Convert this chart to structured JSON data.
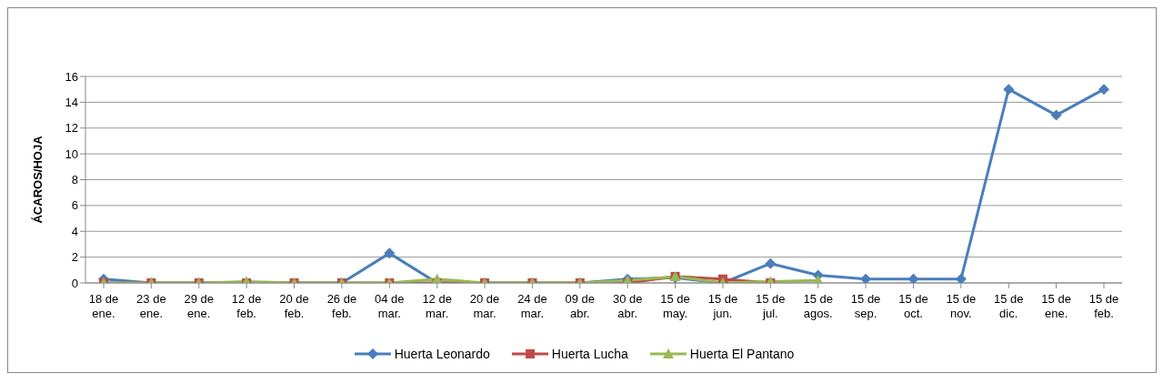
{
  "chart_data": {
    "type": "line",
    "ylabel": "ÁCAROS/HOJA",
    "categories": [
      "18 de ene.",
      "23 de ene.",
      "29 de ene.",
      "12 de feb.",
      "20 de feb.",
      "26 de feb.",
      "04 de mar.",
      "12 de mar.",
      "20 de mar.",
      "24 de mar.",
      "09 de abr.",
      "30 de abr.",
      "15 de may.",
      "15 de jun.",
      "15 de jul.",
      "15 de agos.",
      "15 de sep.",
      "15 de oct.",
      "15 de nov.",
      "15 de dic.",
      "15 de ene.",
      "15 de feb."
    ],
    "series": [
      {
        "name": "Huerta Leonardo",
        "color": "#4a7ebb",
        "marker": "diamond",
        "values": [
          0.3,
          0,
          0,
          0,
          0,
          0,
          2.3,
          0,
          0,
          0,
          0,
          0.3,
          0.4,
          0,
          1.5,
          0.6,
          0.3,
          0.3,
          0.3,
          15,
          13,
          15
        ]
      },
      {
        "name": "Huerta Lucha",
        "color": "#be4b48",
        "marker": "square",
        "values": [
          0,
          0,
          0,
          0,
          0,
          0,
          0,
          0,
          0,
          0,
          0,
          0,
          0.5,
          0.3,
          0,
          null,
          null,
          null,
          null,
          null,
          null,
          null
        ]
      },
      {
        "name": "Huerta El Pantano",
        "color": "#98b954",
        "marker": "triangle",
        "values": [
          0,
          0,
          0,
          0.1,
          0,
          0,
          0,
          0.3,
          0,
          0,
          0,
          0.2,
          0.5,
          0,
          0.1,
          0.2,
          null,
          null,
          null,
          null,
          null,
          null
        ]
      }
    ],
    "ylim": [
      0,
      16
    ],
    "yticks": [
      0,
      2,
      4,
      6,
      8,
      10,
      12,
      14,
      16
    ],
    "grid": "y",
    "legend": "bottom"
  }
}
